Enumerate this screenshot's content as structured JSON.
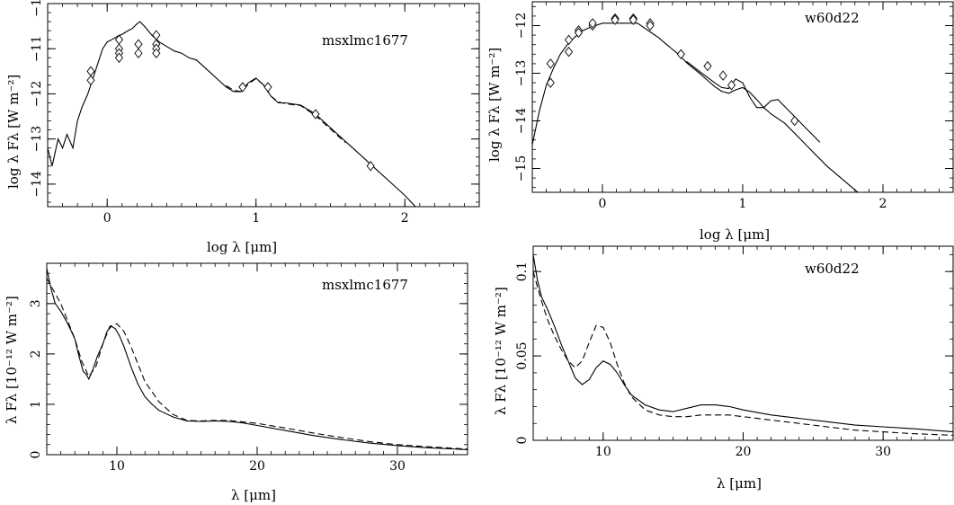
{
  "chart_data": [
    {
      "id": "sed_msx",
      "type": "line",
      "tag": "msxlmc1677",
      "xlabel": "log λ [μm]",
      "ylabel": "log λ Fλ [W m⁻²]",
      "xlim": [
        -0.4,
        2.5
      ],
      "ylim": [
        -14.5,
        -10
      ],
      "xticks": [
        0,
        1,
        2
      ],
      "yticks": [
        -14,
        -13,
        -12,
        -11,
        -10
      ],
      "series": [
        {
          "style": "solid",
          "x": [
            -0.4,
            -0.37,
            -0.33,
            -0.3,
            -0.27,
            -0.23,
            -0.2,
            -0.17,
            -0.13,
            -0.1,
            -0.07,
            -0.03,
            0.0,
            0.03,
            0.07,
            0.1,
            0.13,
            0.17,
            0.2,
            0.22,
            0.25,
            0.27,
            0.3,
            0.35,
            0.4,
            0.45,
            0.5,
            0.55,
            0.6,
            0.65,
            0.7,
            0.75,
            0.8,
            0.85,
            0.9,
            0.95,
            1.0,
            1.05,
            1.1,
            1.15,
            1.2,
            1.3,
            1.4,
            1.5,
            1.6,
            1.7,
            1.8,
            1.9,
            2.0,
            2.1
          ],
          "y": [
            -13.2,
            -13.6,
            -13.0,
            -13.2,
            -12.9,
            -13.2,
            -12.6,
            -12.3,
            -12.0,
            -11.7,
            -11.4,
            -11.0,
            -10.85,
            -10.8,
            -10.72,
            -10.68,
            -10.62,
            -10.55,
            -10.45,
            -10.4,
            -10.5,
            -10.58,
            -10.7,
            -10.85,
            -10.95,
            -11.05,
            -11.1,
            -11.2,
            -11.25,
            -11.4,
            -11.55,
            -11.7,
            -11.85,
            -11.95,
            -11.95,
            -11.75,
            -11.65,
            -11.8,
            -12.05,
            -12.2,
            -12.2,
            -12.25,
            -12.45,
            -12.75,
            -13.05,
            -13.35,
            -13.65,
            -13.95,
            -14.25,
            -14.6
          ]
        },
        {
          "style": "dashed",
          "x": [
            0.8,
            0.85,
            0.9,
            0.95,
            1.0,
            1.05,
            1.1,
            1.15,
            1.2,
            1.3,
            1.4,
            1.5,
            1.6
          ],
          "y": [
            -11.82,
            -11.92,
            -11.95,
            -11.78,
            -11.66,
            -11.8,
            -12.05,
            -12.18,
            -12.22,
            -12.26,
            -12.48,
            -12.78,
            -13.08
          ]
        }
      ],
      "photometry": {
        "x": [
          -0.11,
          -0.11,
          0.08,
          0.08,
          0.08,
          0.08,
          0.21,
          0.21,
          0.33,
          0.33,
          0.33,
          0.33,
          0.91,
          1.08,
          1.4,
          1.77
        ],
        "y": [
          -11.5,
          -11.7,
          -10.8,
          -11.0,
          -11.1,
          -11.2,
          -10.9,
          -11.1,
          -10.7,
          -10.9,
          -11.0,
          -11.1,
          -11.85,
          -11.85,
          -12.45,
          -13.6
        ]
      }
    },
    {
      "id": "sed_w60",
      "type": "line",
      "tag": "w60d22",
      "xlabel": "log λ [μm]",
      "ylabel": "log λ Fλ [W m⁻²]",
      "xlim": [
        -0.5,
        2.5
      ],
      "ylim": [
        -15.5,
        -11.5
      ],
      "xticks": [
        0,
        1,
        2
      ],
      "yticks": [
        -15,
        -14,
        -13,
        -12
      ],
      "series": [
        {
          "style": "solid",
          "x": [
            -0.5,
            -0.45,
            -0.4,
            -0.35,
            -0.3,
            -0.25,
            -0.2,
            -0.15,
            -0.1,
            -0.05,
            0.0,
            0.05,
            0.1,
            0.15,
            0.2,
            0.25,
            0.3,
            0.35,
            0.4,
            0.45,
            0.5,
            0.55,
            0.6,
            0.65,
            0.7,
            0.75,
            0.8,
            0.85,
            0.9,
            0.95,
            1.0,
            1.05,
            1.1,
            1.15,
            1.2,
            1.3,
            1.4,
            1.5,
            1.6,
            1.7,
            1.8,
            1.9
          ],
          "y": [
            -14.5,
            -13.8,
            -13.25,
            -12.9,
            -12.6,
            -12.4,
            -12.25,
            -12.12,
            -12.05,
            -12.0,
            -11.95,
            -11.95,
            -11.95,
            -11.95,
            -11.95,
            -11.95,
            -12.05,
            -12.15,
            -12.25,
            -12.38,
            -12.5,
            -12.62,
            -12.78,
            -12.9,
            -13.02,
            -13.15,
            -13.28,
            -13.38,
            -13.42,
            -13.35,
            -13.3,
            -13.4,
            -13.55,
            -13.72,
            -13.85,
            -14.05,
            -14.35,
            -14.65,
            -14.95,
            -15.2,
            -15.45,
            -15.7
          ]
        },
        {
          "style": "solid",
          "x": [
            0.6,
            0.7,
            0.8,
            0.85,
            0.9,
            0.95,
            1.0,
            1.05,
            1.1,
            1.15,
            1.2,
            1.25,
            1.3,
            1.35,
            1.4,
            1.45,
            1.5,
            1.55
          ],
          "y": [
            -12.75,
            -12.98,
            -13.2,
            -13.3,
            -13.32,
            -13.12,
            -13.2,
            -13.5,
            -13.72,
            -13.72,
            -13.58,
            -13.55,
            -13.7,
            -13.85,
            -14.0,
            -14.15,
            -14.3,
            -14.45
          ]
        }
      ],
      "photometry": {
        "x": [
          -0.37,
          -0.37,
          -0.24,
          -0.24,
          -0.17,
          -0.17,
          -0.07,
          -0.07,
          0.09,
          0.09,
          0.22,
          0.22,
          0.34,
          0.34,
          0.56,
          0.75,
          0.86,
          0.92,
          1.37
        ],
        "y": [
          -12.8,
          -13.2,
          -12.3,
          -12.55,
          -12.1,
          -12.15,
          -12.0,
          -11.95,
          -11.85,
          -11.88,
          -11.85,
          -11.88,
          -11.95,
          -12.0,
          -12.6,
          -12.85,
          -13.05,
          -13.25,
          -14.0
        ]
      }
    },
    {
      "id": "spec_msx",
      "type": "line",
      "tag": "msxlmc1677",
      "xlabel": "λ [μm]",
      "ylabel": "λ Fλ [10⁻¹² W m⁻²]",
      "xlim": [
        5,
        35
      ],
      "ylim": [
        0,
        3.8
      ],
      "xticks": [
        10,
        20,
        30
      ],
      "yticks": [
        0,
        1,
        2,
        3
      ],
      "series": [
        {
          "style": "solid",
          "x": [
            5.0,
            5.3,
            5.6,
            6.0,
            6.5,
            7.0,
            7.3,
            7.6,
            7.8,
            8.0,
            8.3,
            8.6,
            9.0,
            9.3,
            9.6,
            9.9,
            10.2,
            10.5,
            11.0,
            11.5,
            12.0,
            12.5,
            13.0,
            14.0,
            15.0,
            16.0,
            17.0,
            18.0,
            19.0,
            20.0,
            22.0,
            24.0,
            26.0,
            28.0,
            30.0,
            32.0,
            35.0
          ],
          "y": [
            3.7,
            3.3,
            3.0,
            2.85,
            2.6,
            2.3,
            1.95,
            1.65,
            1.6,
            1.5,
            1.7,
            1.95,
            2.2,
            2.45,
            2.55,
            2.5,
            2.35,
            2.15,
            1.75,
            1.4,
            1.15,
            1.0,
            0.88,
            0.75,
            0.67,
            0.66,
            0.67,
            0.66,
            0.63,
            0.58,
            0.48,
            0.38,
            0.3,
            0.23,
            0.18,
            0.14,
            0.1
          ]
        },
        {
          "style": "dashed",
          "x": [
            5.0,
            6.0,
            7.0,
            7.5,
            8.0,
            8.5,
            9.0,
            9.5,
            10.0,
            10.5,
            11.0,
            11.5,
            12.0,
            13.0,
            14.0,
            15.0,
            16.0,
            17.0,
            18.0,
            20.0,
            22.0,
            24.0,
            26.0,
            28.0,
            30.0,
            32.0,
            35.0
          ],
          "y": [
            3.5,
            3.0,
            2.3,
            1.85,
            1.55,
            1.75,
            2.2,
            2.55,
            2.6,
            2.45,
            2.15,
            1.8,
            1.45,
            1.05,
            0.8,
            0.68,
            0.67,
            0.68,
            0.68,
            0.62,
            0.53,
            0.43,
            0.34,
            0.26,
            0.2,
            0.16,
            0.11
          ]
        }
      ]
    },
    {
      "id": "spec_w60",
      "type": "line",
      "tag": "w60d22",
      "xlabel": "λ [μm]",
      "ylabel": "λ Fλ [10⁻¹² W m⁻²]",
      "xlim": [
        5,
        35
      ],
      "ylim": [
        0,
        0.115
      ],
      "xticks": [
        10,
        20,
        30
      ],
      "yticks": [
        0,
        0.05,
        0.1
      ],
      "ytick_labels": [
        "0",
        "0.05",
        "0.1"
      ],
      "series": [
        {
          "style": "solid",
          "x": [
            5.0,
            5.3,
            5.6,
            6.0,
            6.5,
            7.0,
            7.5,
            8.0,
            8.5,
            9.0,
            9.5,
            10.0,
            10.5,
            11.0,
            11.5,
            12.0,
            13.0,
            14.0,
            15.0,
            16.0,
            17.0,
            18.0,
            19.0,
            20.0,
            22.0,
            24.0,
            26.0,
            28.0,
            30.0,
            32.0,
            35.0
          ],
          "y": [
            0.11,
            0.095,
            0.085,
            0.078,
            0.068,
            0.057,
            0.047,
            0.037,
            0.033,
            0.036,
            0.043,
            0.047,
            0.045,
            0.04,
            0.033,
            0.027,
            0.021,
            0.018,
            0.017,
            0.019,
            0.021,
            0.021,
            0.02,
            0.018,
            0.015,
            0.013,
            0.011,
            0.009,
            0.008,
            0.007,
            0.005
          ]
        },
        {
          "style": "dashed",
          "x": [
            5.0,
            5.5,
            6.0,
            6.5,
            7.0,
            7.5,
            8.0,
            8.5,
            9.0,
            9.5,
            10.0,
            10.5,
            11.0,
            11.5,
            12.0,
            13.0,
            14.0,
            15.0,
            16.0,
            17.0,
            18.0,
            19.0,
            20.0,
            22.0,
            24.0,
            26.0,
            28.0,
            30.0,
            32.0,
            35.0
          ],
          "y": [
            0.1,
            0.085,
            0.072,
            0.062,
            0.054,
            0.047,
            0.043,
            0.047,
            0.058,
            0.068,
            0.067,
            0.058,
            0.045,
            0.034,
            0.026,
            0.018,
            0.015,
            0.014,
            0.014,
            0.015,
            0.015,
            0.015,
            0.014,
            0.012,
            0.01,
            0.008,
            0.006,
            0.005,
            0.004,
            0.003
          ]
        }
      ]
    }
  ]
}
